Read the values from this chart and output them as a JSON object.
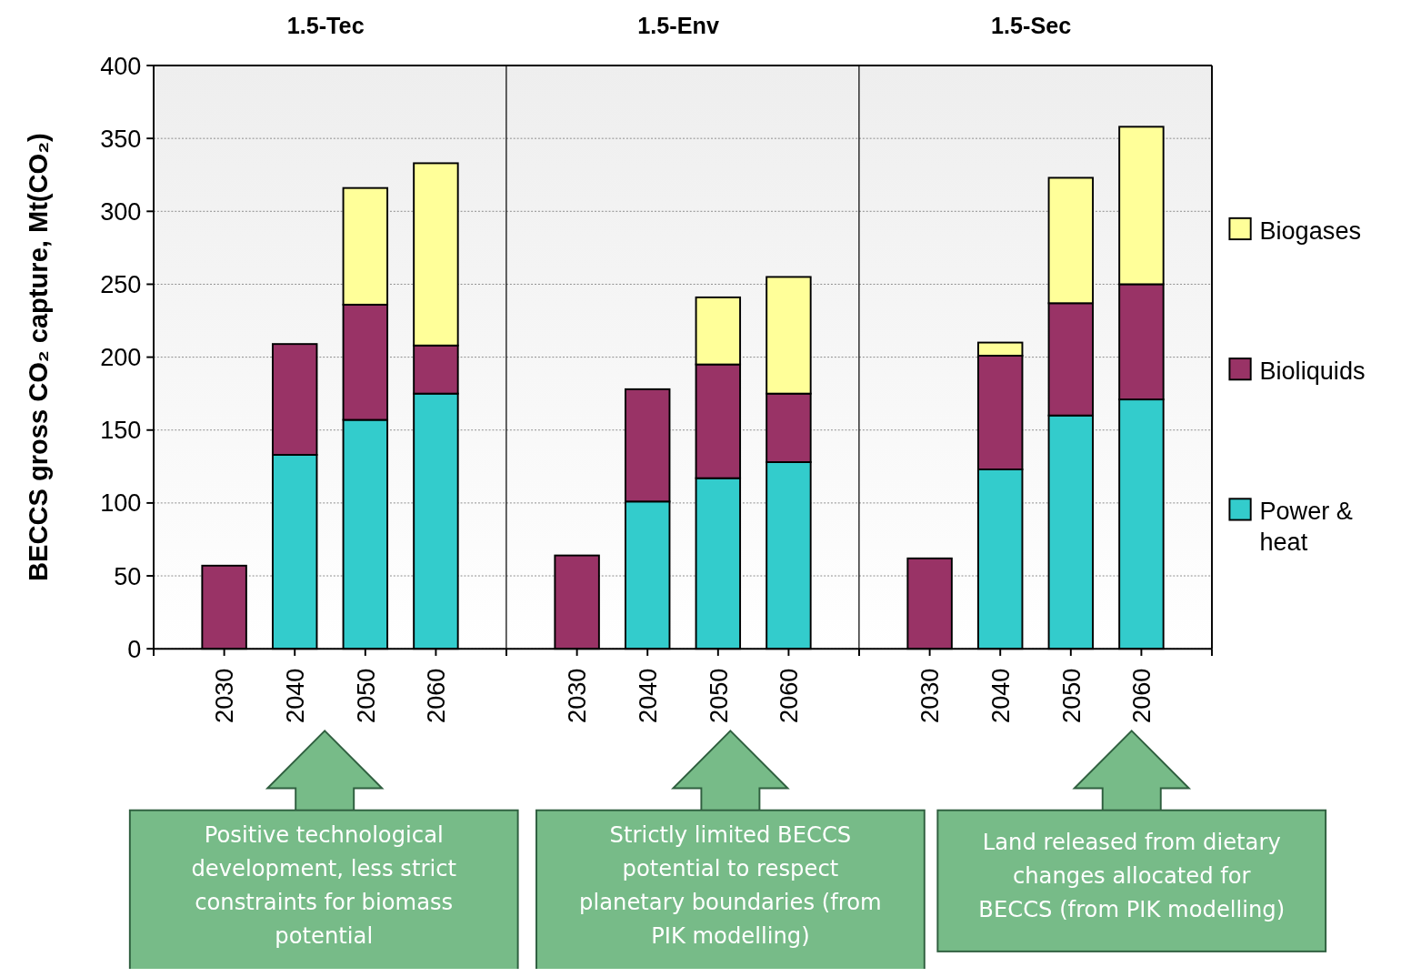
{
  "chart_data": [
    {
      "type": "bar",
      "title": "1.5-Tec",
      "ylabel": "BECCS gross CO₂ capture, Mt(CO₂)",
      "categories": [
        "2030",
        "2040",
        "2050",
        "2060"
      ],
      "stacked": true,
      "ylim": [
        0,
        400
      ],
      "yticks": [
        0,
        50,
        100,
        150,
        200,
        250,
        300,
        350,
        400
      ],
      "grid": "y",
      "series": [
        {
          "color": "#33cccc",
          "values": [
            0,
            133,
            157,
            175
          ]
        },
        {
          "color": "#993366",
          "values": [
            57,
            76,
            79,
            33
          ]
        },
        {
          "color": "#ffff99",
          "values": [
            0,
            0,
            80,
            125
          ]
        }
      ],
      "annotations": [
        "Positive technological development, less strict constraints for biomass potential"
      ]
    },
    {
      "type": "bar",
      "title": "1.5-Env",
      "categories": [
        "2030",
        "2040",
        "2050",
        "2060"
      ],
      "stacked": true,
      "ylim": [
        0,
        400
      ],
      "yticks": [
        0,
        50,
        100,
        150,
        200,
        250,
        300,
        350,
        400
      ],
      "grid": "y",
      "tick_labels": "x",
      "series": [
        {
          "color": "#33cccc",
          "values": [
            0,
            101,
            117,
            128
          ]
        },
        {
          "color": "#993366",
          "values": [
            64,
            77,
            78,
            47
          ]
        },
        {
          "color": "#ffff99",
          "values": [
            0,
            0,
            46,
            80
          ]
        }
      ],
      "annotations": [
        "Strictly limited BECCS potential to respect planetary boundaries (from PIK modelling)"
      ]
    },
    {
      "type": "bar",
      "title": "1.5-Sec",
      "categories": [
        "2030",
        "2040",
        "2050",
        "2060"
      ],
      "stacked": true,
      "ylim": [
        0,
        400
      ],
      "yticks": [
        0,
        50,
        100,
        150,
        200,
        250,
        300,
        350,
        400
      ],
      "grid": "y",
      "tick_labels": "x",
      "legend": "right",
      "series": [
        {
          "name": "Power & heat",
          "color": "#33cccc",
          "values": [
            0,
            123,
            160,
            171
          ]
        },
        {
          "name": "Bioliquids",
          "color": "#993366",
          "values": [
            62,
            78,
            77,
            79
          ]
        },
        {
          "name": "Biogases",
          "color": "#ffff99",
          "values": [
            0,
            9,
            86,
            108
          ]
        }
      ],
      "annotations": [
        "Land released from dietary changes allocated for BECCS (from PIK modelling)"
      ]
    }
  ]
}
